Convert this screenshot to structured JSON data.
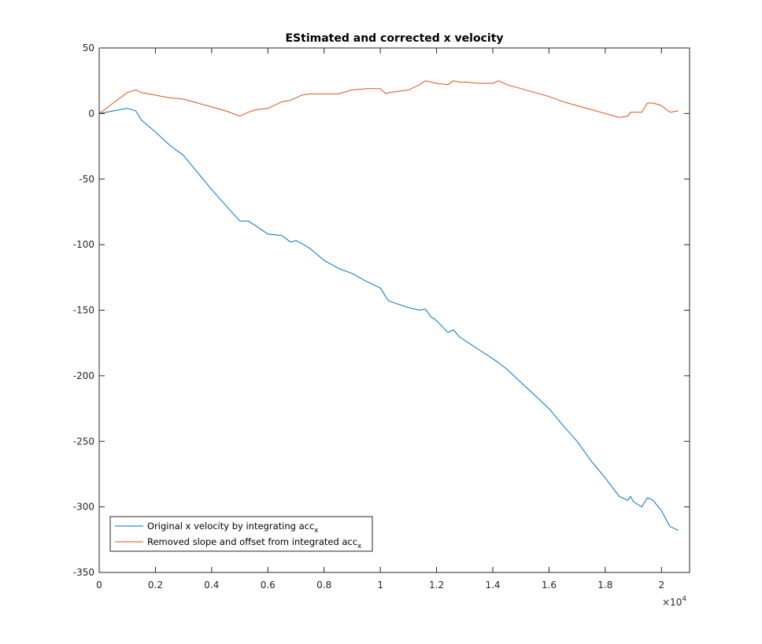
{
  "chart_data": {
    "type": "line",
    "title": "EStimated and corrected x velocity",
    "xlabel": "",
    "ylabel": "",
    "xlim": [
      0,
      21000
    ],
    "ylim": [
      -350,
      50
    ],
    "x_exponent_label": "×10",
    "x_exponent_power": "4",
    "x_ticks": [
      0,
      2000,
      4000,
      6000,
      8000,
      10000,
      12000,
      14000,
      16000,
      18000,
      20000
    ],
    "x_tick_labels": [
      "0",
      "0.2",
      "0.4",
      "0.6",
      "0.8",
      "1",
      "1.2",
      "1.4",
      "1.6",
      "1.8",
      "2"
    ],
    "y_ticks": [
      50,
      0,
      -50,
      -100,
      -150,
      -200,
      -250,
      -300,
      -350
    ],
    "y_tick_labels": [
      "50",
      "0",
      "-50",
      "-100",
      "-150",
      "-200",
      "-250",
      "-300",
      "-350"
    ],
    "grid": false,
    "legend_position": "bottom-left",
    "series": [
      {
        "name": "Original x velocity by integrating acc",
        "name_subscript": "x",
        "color": "#0072bd",
        "x": [
          0,
          500,
          1000,
          1300,
          1500,
          2000,
          2500,
          3000,
          3500,
          4000,
          4500,
          5000,
          5300,
          5600,
          6000,
          6500,
          6800,
          7000,
          7200,
          7500,
          8000,
          8500,
          9000,
          9500,
          10000,
          10200,
          10300,
          11000,
          11400,
          11600,
          11800,
          12000,
          12400,
          12600,
          12800,
          13000,
          13500,
          14000,
          14200,
          14500,
          15000,
          15500,
          16000,
          16500,
          17000,
          17500,
          18000,
          18500,
          18800,
          18900,
          19000,
          19300,
          19500,
          19700,
          20000,
          20300,
          20600
        ],
        "y": [
          0,
          2,
          4,
          2,
          -5,
          -14,
          -24,
          -32,
          -45,
          -58,
          -70,
          -82,
          -82,
          -86,
          -92,
          -93,
          -98,
          -97,
          -99,
          -103,
          -112,
          -118,
          -122,
          -128,
          -133,
          -140,
          -143,
          -148,
          -150,
          -149,
          -155,
          -158,
          -167,
          -165,
          -170,
          -173,
          -180,
          -187,
          -190,
          -195,
          -205,
          -215,
          -225,
          -238,
          -250,
          -265,
          -278,
          -292,
          -295,
          -292,
          -296,
          -300,
          -293,
          -295,
          -303,
          -315,
          -318
        ]
      },
      {
        "name": "Removed slope and offset from integrated acc",
        "name_subscript": "x",
        "color": "#d95319",
        "x": [
          0,
          500,
          1000,
          1300,
          1500,
          2000,
          2500,
          3000,
          3500,
          4000,
          4500,
          5000,
          5300,
          5600,
          6000,
          6500,
          6800,
          7000,
          7200,
          7500,
          8000,
          8500,
          9000,
          9500,
          10000,
          10200,
          10300,
          11000,
          11400,
          11600,
          11800,
          12000,
          12400,
          12600,
          12800,
          13000,
          13500,
          14000,
          14200,
          14500,
          15000,
          15500,
          16000,
          16500,
          17000,
          17500,
          18000,
          18500,
          18800,
          18900,
          19000,
          19300,
          19500,
          19700,
          20000,
          20300,
          20600
        ],
        "y": [
          0,
          8,
          16,
          18,
          16,
          14,
          12,
          11,
          8,
          5,
          2,
          -2,
          1,
          3,
          4,
          9,
          10,
          12,
          14,
          15,
          15,
          15,
          18,
          19,
          19,
          15,
          16,
          18,
          22,
          25,
          24,
          23,
          22,
          25,
          24,
          24,
          23,
          23,
          25,
          22,
          19,
          16,
          13,
          9,
          6,
          3,
          0,
          -3,
          -2,
          1,
          1,
          1,
          8,
          8,
          6,
          1,
          2
        ]
      }
    ]
  }
}
